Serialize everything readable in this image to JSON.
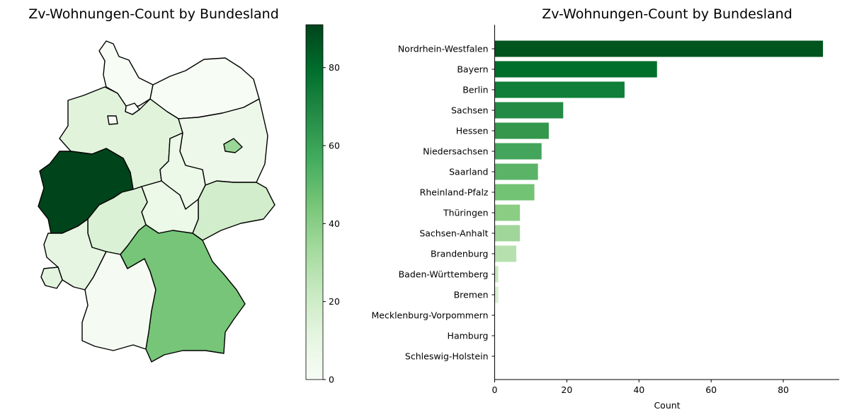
{
  "chart_data": [
    {
      "type": "choropleth-map",
      "title": "Zv-Wohnungen-Count by Bundesland",
      "colormap": "Greens",
      "colorbar": {
        "ticks": [
          0,
          20,
          40,
          60,
          80
        ],
        "tick_labels": [
          "0",
          "20",
          "40",
          "60",
          "80"
        ],
        "range": [
          0,
          91
        ]
      },
      "regions": [
        {
          "name": "Nordrhein-Westfalen",
          "value": 91
        },
        {
          "name": "Bayern",
          "value": 45
        },
        {
          "name": "Berlin",
          "value": 36
        },
        {
          "name": "Sachsen",
          "value": 19
        },
        {
          "name": "Hessen",
          "value": 15
        },
        {
          "name": "Niedersachsen",
          "value": 13
        },
        {
          "name": "Saarland",
          "value": 12
        },
        {
          "name": "Rheinland-Pfalz",
          "value": 11
        },
        {
          "name": "Thüringen",
          "value": 7
        },
        {
          "name": "Sachsen-Anhalt",
          "value": 7
        },
        {
          "name": "Brandenburg",
          "value": 6
        },
        {
          "name": "Baden-Württemberg",
          "value": 1
        },
        {
          "name": "Bremen",
          "value": 1
        },
        {
          "name": "Mecklenburg-Vorpommern",
          "value": 0
        },
        {
          "name": "Hamburg",
          "value": 0
        },
        {
          "name": "Schleswig-Holstein",
          "value": 0
        }
      ]
    },
    {
      "type": "bar",
      "orientation": "horizontal",
      "title": "Zv-Wohnungen-Count by Bundesland",
      "xlabel": "Count",
      "ylabel": "",
      "xlim": [
        0,
        95.5
      ],
      "xticks": [
        0,
        20,
        40,
        60,
        80
      ],
      "xtick_labels": [
        "0",
        "20",
        "40",
        "60",
        "80"
      ],
      "categories": [
        "Nordrhein-Westfalen",
        "Bayern",
        "Berlin",
        "Sachsen",
        "Hessen",
        "Niedersachsen",
        "Saarland",
        "Rheinland-Pfalz",
        "Thüringen",
        "Sachsen-Anhalt",
        "Brandenburg",
        "Baden-Württemberg",
        "Bremen",
        "Mecklenburg-Vorpommern",
        "Hamburg",
        "Schleswig-Holstein"
      ],
      "values": [
        91,
        45,
        36,
        19,
        15,
        13,
        12,
        11,
        7,
        7,
        6,
        1,
        1,
        0,
        0,
        0
      ],
      "colors": [
        "#00541e",
        "#006f2c",
        "#0f7f39",
        "#248b45",
        "#35974c",
        "#43a55b",
        "#5ab367",
        "#73c375",
        "#8acd83",
        "#a0d69a",
        "#b6e1ae",
        "#c8e8c2",
        "#d8f0d2",
        "#e6f5e2",
        "#f0f9ec",
        "#f7fbf5"
      ]
    }
  ]
}
